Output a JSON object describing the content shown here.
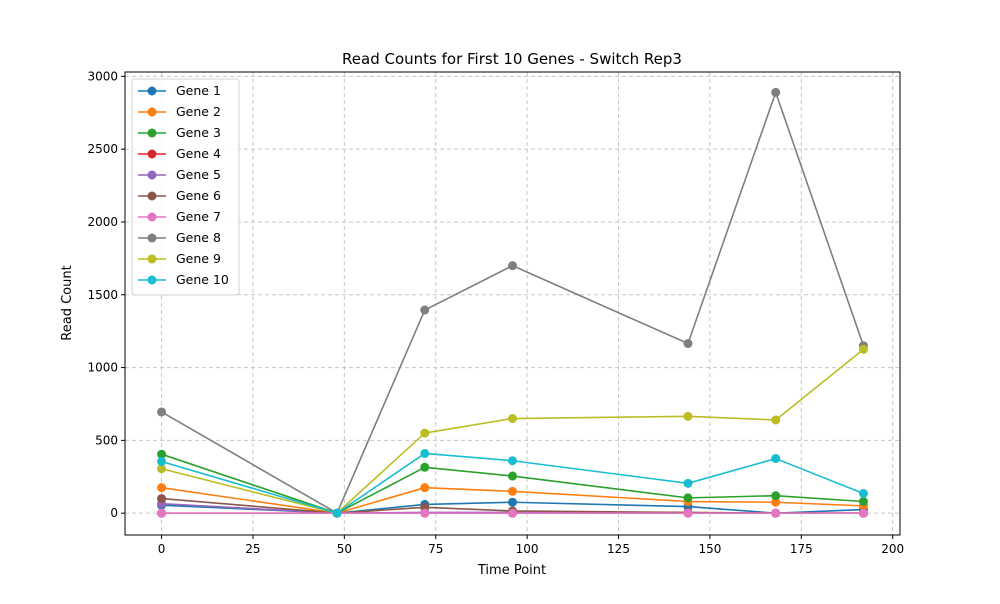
{
  "chart_data": {
    "type": "line",
    "title": "Read Counts for First 10 Genes - Switch Rep3",
    "xlabel": "Time Point",
    "ylabel": "Read Count",
    "xlim": [
      -10,
      202
    ],
    "ylim": [
      -150,
      3030
    ],
    "xticks": [
      0,
      25,
      50,
      75,
      100,
      125,
      150,
      175,
      200
    ],
    "yticks": [
      0,
      500,
      1000,
      1500,
      2000,
      2500,
      3000
    ],
    "grid": true,
    "legend_position": "top-left",
    "x": [
      0,
      48,
      72,
      96,
      144,
      168,
      192
    ],
    "series": [
      {
        "name": "Gene 1",
        "color": "#1f77b4",
        "values": [
          55,
          0,
          60,
          75,
          45,
          0,
          25
        ]
      },
      {
        "name": "Gene 2",
        "color": "#ff7f0e",
        "values": [
          175,
          0,
          175,
          150,
          80,
          75,
          50
        ]
      },
      {
        "name": "Gene 3",
        "color": "#2ca02c",
        "values": [
          405,
          0,
          315,
          255,
          105,
          120,
          80
        ]
      },
      {
        "name": "Gene 4",
        "color": "#d62728",
        "values": [
          0,
          0,
          0,
          0,
          0,
          0,
          0
        ]
      },
      {
        "name": "Gene 5",
        "color": "#9467bd",
        "values": [
          65,
          0,
          5,
          5,
          0,
          0,
          0
        ]
      },
      {
        "name": "Gene 6",
        "color": "#8c564b",
        "values": [
          100,
          0,
          40,
          15,
          5,
          0,
          0
        ]
      },
      {
        "name": "Gene 7",
        "color": "#e377c2",
        "values": [
          0,
          0,
          0,
          0,
          0,
          0,
          0
        ]
      },
      {
        "name": "Gene 8",
        "color": "#7f7f7f",
        "values": [
          695,
          0,
          1395,
          1700,
          1165,
          2890,
          1150
        ]
      },
      {
        "name": "Gene 9",
        "color": "#bcbd22",
        "values": [
          305,
          0,
          550,
          650,
          665,
          640,
          1125
        ]
      },
      {
        "name": "Gene 10",
        "color": "#17becf",
        "values": [
          355,
          0,
          410,
          360,
          205,
          375,
          135
        ]
      }
    ]
  }
}
